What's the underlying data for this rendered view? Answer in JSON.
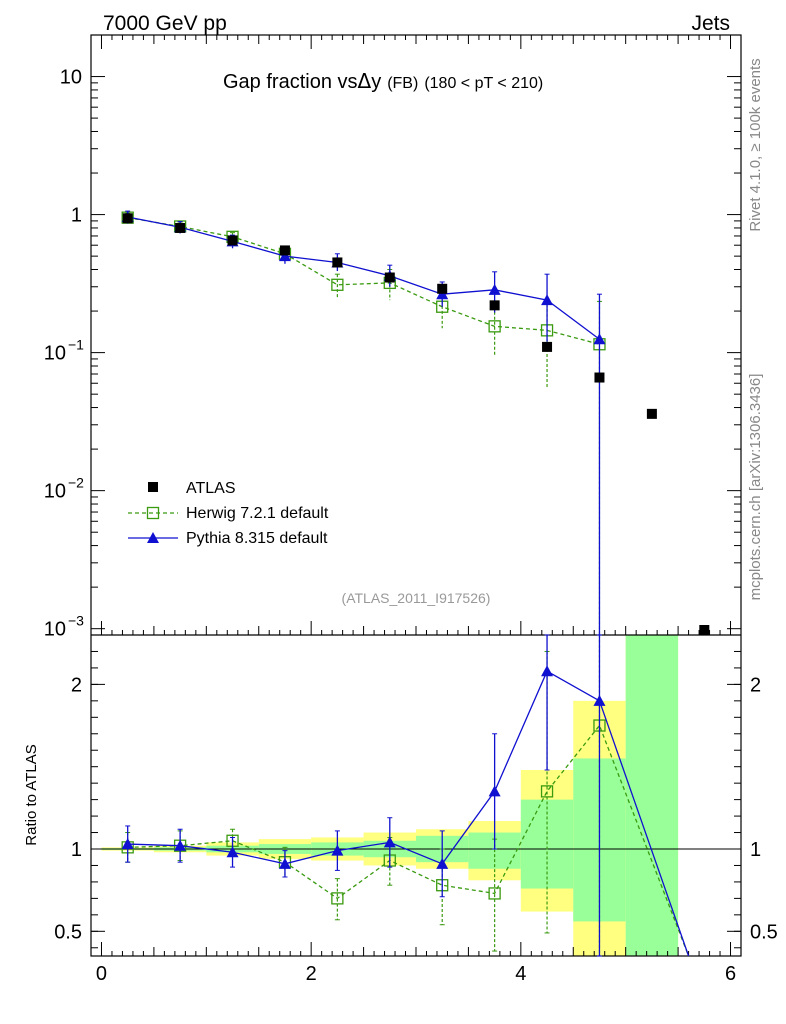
{
  "header": {
    "left": "7000 GeV pp",
    "right": "Jets"
  },
  "side": {
    "rivet": "Rivet 4.1.0, ≥ 100k events",
    "mcplots": "mcplots.cern.ch [arXiv:1306.3436]"
  },
  "colors": {
    "data": "#000000",
    "herwig": "#3a9a10",
    "pythia": "#1010d0",
    "band_yellow": "#ffff80",
    "band_green": "#99ff99"
  },
  "chart_data": {
    "type": "scatter",
    "title": "Gap fraction vsΔy (FB)  (180 < pT < 210)",
    "title_main": "Gap fraction vs",
    "title_delta": "Δ",
    "title_y": "y",
    "title_fb": "(FB)",
    "title_range": "(180 < pT < 210)",
    "analysis_id": "(ATLAS_2011_I917526)",
    "xlabel": "",
    "ylabel": "",
    "xlim": [
      -0.1,
      6.1
    ],
    "ylim": [
      0.0009,
      20
    ],
    "yscale": "log",
    "x_ticks": [
      "0",
      "2",
      "4",
      "6"
    ],
    "y_ticks": [
      {
        "value": 10,
        "mant": "10",
        "exp": ""
      },
      {
        "value": 1,
        "mant": "1",
        "exp": ""
      },
      {
        "value": 0.1,
        "mant": "10",
        "exp": "−1"
      },
      {
        "value": 0.01,
        "mant": "10",
        "exp": "−2"
      },
      {
        "value": 0.001,
        "mant": "10",
        "exp": "−3"
      }
    ],
    "legend": [
      {
        "name": "ATLAS",
        "style": "data"
      },
      {
        "name": "Herwig 7.2.1 default",
        "style": "herwig"
      },
      {
        "name": "Pythia 8.315 default",
        "style": "pythia"
      }
    ],
    "series": [
      {
        "name": "ATLAS",
        "x": [
          0.25,
          0.75,
          1.25,
          1.75,
          2.25,
          2.75,
          3.25,
          3.75,
          4.25,
          4.75,
          5.25,
          5.75
        ],
        "values": [
          0.94,
          0.8,
          0.65,
          0.55,
          0.45,
          0.35,
          0.29,
          0.22,
          0.11,
          0.066,
          0.036,
          0.00095
        ]
      },
      {
        "name": "Herwig 7.2.1 default",
        "x": [
          0.25,
          0.75,
          1.25,
          1.75,
          2.25,
          2.75,
          3.25,
          3.75,
          4.25,
          4.75
        ],
        "values": [
          0.95,
          0.82,
          0.69,
          0.52,
          0.31,
          0.32,
          0.215,
          0.155,
          0.145,
          0.115
        ],
        "err_lo": [
          0.07,
          0.05,
          0.05,
          0.05,
          0.06,
          0.08,
          0.065,
          0.06,
          0.09,
          0.115
        ],
        "err_hi": [
          0.07,
          0.05,
          0.05,
          0.05,
          0.06,
          0.08,
          0.065,
          0.06,
          0.08,
          0.12
        ]
      },
      {
        "name": "Pythia 8.315 default",
        "x": [
          0.25,
          0.75,
          1.25,
          1.75,
          2.25,
          2.75,
          3.25,
          3.75,
          4.25,
          4.75
        ],
        "values": [
          0.96,
          0.81,
          0.64,
          0.5,
          0.45,
          0.36,
          0.265,
          0.285,
          0.24,
          0.125
        ],
        "err_lo": [
          0.1,
          0.08,
          0.07,
          0.06,
          0.06,
          0.06,
          0.05,
          0.09,
          0.12,
          0.125
        ],
        "err_hi": [
          0.1,
          0.08,
          0.07,
          0.06,
          0.07,
          0.07,
          0.06,
          0.1,
          0.13,
          0.14
        ]
      }
    ],
    "ratio": {
      "ylabel": "Ratio to ATLAS",
      "ylim": [
        0.35,
        2.3
      ],
      "y_ticks": [
        "0.5",
        "1",
        "2"
      ],
      "y_tick_values": [
        0.5,
        1,
        2
      ],
      "bands": [
        {
          "x0": 0.0,
          "x1": 0.5,
          "y_lo": 0.99,
          "y_hi": 1.01,
          "g_lo": 0.995,
          "g_hi": 1.005
        },
        {
          "x0": 0.5,
          "x1": 1.0,
          "y_lo": 0.98,
          "y_hi": 1.02,
          "g_lo": 0.99,
          "g_hi": 1.01
        },
        {
          "x0": 1.0,
          "x1": 1.5,
          "y_lo": 0.96,
          "y_hi": 1.04,
          "g_lo": 0.98,
          "g_hi": 1.02
        },
        {
          "x0": 1.5,
          "x1": 2.0,
          "y_lo": 0.94,
          "y_hi": 1.06,
          "g_lo": 0.97,
          "g_hi": 1.03
        },
        {
          "x0": 2.0,
          "x1": 2.5,
          "y_lo": 0.93,
          "y_hi": 1.07,
          "g_lo": 0.96,
          "g_hi": 1.04
        },
        {
          "x0": 2.5,
          "x1": 3.0,
          "y_lo": 0.9,
          "y_hi": 1.1,
          "g_lo": 0.95,
          "g_hi": 1.05
        },
        {
          "x0": 3.0,
          "x1": 3.5,
          "y_lo": 0.88,
          "y_hi": 1.12,
          "g_lo": 0.92,
          "g_hi": 1.08
        },
        {
          "x0": 3.5,
          "x1": 4.0,
          "y_lo": 0.81,
          "y_hi": 1.17,
          "g_lo": 0.88,
          "g_hi": 1.1
        },
        {
          "x0": 4.0,
          "x1": 4.5,
          "y_lo": 0.62,
          "y_hi": 1.48,
          "g_lo": 0.76,
          "g_hi": 1.3
        },
        {
          "x0": 4.5,
          "x1": 5.0,
          "y_lo": 0.35,
          "y_hi": 1.9,
          "g_lo": 0.56,
          "g_hi": 1.55
        },
        {
          "x0": 5.0,
          "x1": 5.5,
          "y_lo": 0.35,
          "y_hi": 2.3,
          "g_lo": 0.35,
          "g_hi": 2.3
        }
      ],
      "herwig": {
        "x": [
          0.25,
          0.75,
          1.25,
          1.75,
          2.25,
          2.75,
          3.25,
          3.75,
          4.25,
          4.75,
          5.6
        ],
        "values": [
          1.01,
          1.02,
          1.05,
          0.92,
          0.7,
          0.93,
          0.78,
          0.73,
          1.35,
          1.75,
          0.35
        ],
        "err_lo": [
          0.09,
          0.09,
          0.07,
          0.09,
          0.13,
          0.15,
          0.24,
          0.35,
          0.86,
          1.6,
          0
        ],
        "err_hi": [
          0.09,
          0.09,
          0.07,
          0.09,
          0.12,
          0.14,
          0.22,
          0.33,
          0.85,
          0.7,
          0
        ]
      },
      "pythia": {
        "x": [
          0.25,
          0.75,
          1.25,
          1.75,
          2.25,
          2.75,
          3.25,
          3.75,
          4.25,
          4.75,
          5.6
        ],
        "values": [
          1.03,
          1.02,
          0.98,
          0.91,
          0.99,
          1.04,
          0.91,
          1.35,
          2.08,
          1.9,
          0.35
        ],
        "err_lo": [
          0.11,
          0.1,
          0.09,
          0.08,
          0.12,
          0.15,
          0.2,
          0.35,
          0.6,
          1.6,
          0
        ],
        "err_hi": [
          0.11,
          0.1,
          0.09,
          0.08,
          0.12,
          0.15,
          0.2,
          0.35,
          0.5,
          0.45,
          0
        ]
      }
    }
  }
}
